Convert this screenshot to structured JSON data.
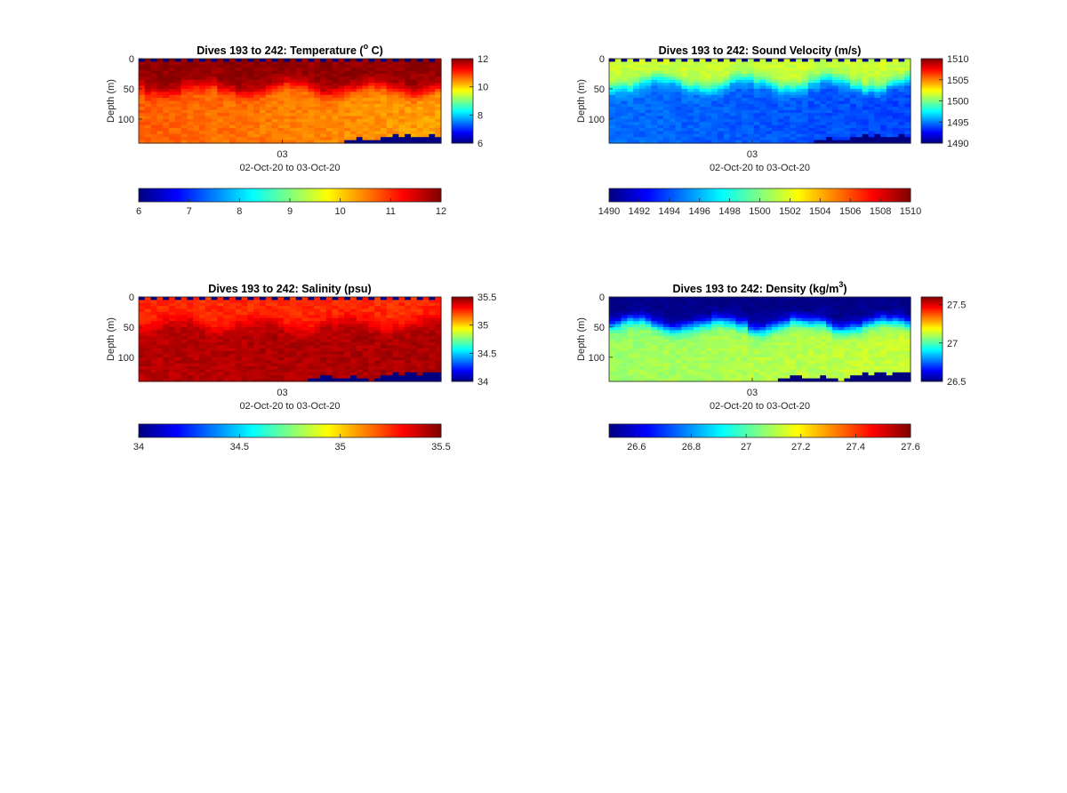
{
  "figure": {
    "background": "#ffffff",
    "colormap": "jet"
  },
  "chart_data": [
    {
      "type": "heatmap",
      "title_prefix": "Dives 193 to 242: Temperature (",
      "title_sup": "o",
      "title_suffix": " C)",
      "xlabel": "02-Oct-20 to 03-Oct-20",
      "ylabel": "Depth (m)",
      "x_ticks": [
        "03"
      ],
      "y_ticks": [
        0,
        50,
        100
      ],
      "ylim": [
        0,
        140
      ],
      "clim": [
        6,
        12
      ],
      "cb_ticks": [
        12,
        10,
        8,
        6
      ],
      "h_cb_ticks": [
        6,
        7,
        8,
        9,
        10,
        11,
        12
      ],
      "n_dives": 50,
      "profile": {
        "upper_value": 11.9,
        "upper_depth_base": 50,
        "lower_value": 10.7,
        "lower_end_value": 10.3,
        "surface_gap": true
      },
      "bottom_depth": [
        140,
        140,
        140,
        140,
        140,
        140,
        140,
        140,
        140,
        140,
        140,
        140,
        140,
        140,
        140,
        140,
        140,
        140,
        140,
        140,
        140,
        140,
        140,
        140,
        140,
        140,
        140,
        140,
        140,
        140,
        140,
        140,
        140,
        140,
        134,
        134,
        132,
        134,
        136,
        134,
        132,
        128,
        126,
        128,
        126,
        128,
        130,
        128,
        126,
        130
      ]
    },
    {
      "type": "heatmap",
      "title_prefix": "Dives 193 to 242: Sound Velocity (m/s)",
      "title_sup": "",
      "title_suffix": "",
      "xlabel": "02-Oct-20 to 03-Oct-20",
      "ylabel": "Depth (m)",
      "x_ticks": [
        "03"
      ],
      "y_ticks": [
        0,
        50,
        100
      ],
      "ylim": [
        0,
        140
      ],
      "clim": [
        1490,
        1510
      ],
      "cb_ticks": [
        1510,
        1505,
        1500,
        1495,
        1490
      ],
      "h_cb_ticks": [
        1490,
        1492,
        1494,
        1496,
        1498,
        1500,
        1502,
        1504,
        1506,
        1508,
        1510
      ],
      "n_dives": 50,
      "profile": {
        "upper_value": 1501.5,
        "upper_depth_base": 42,
        "lower_value": 1494.6,
        "lower_end_value": 1493.8,
        "surface_gap": true
      },
      "bottom_depth": [
        140,
        140,
        140,
        140,
        140,
        140,
        140,
        140,
        140,
        140,
        140,
        140,
        140,
        140,
        140,
        140,
        140,
        140,
        140,
        140,
        140,
        140,
        140,
        140,
        140,
        140,
        140,
        140,
        140,
        140,
        140,
        140,
        140,
        140,
        136,
        134,
        132,
        134,
        136,
        134,
        132,
        128,
        126,
        128,
        126,
        128,
        130,
        128,
        126,
        130
      ]
    },
    {
      "type": "heatmap",
      "title_prefix": "Dives 193 to 242: Salinity (psu)",
      "title_sup": "",
      "title_suffix": "",
      "xlabel": "02-Oct-20 to 03-Oct-20",
      "ylabel": "Depth (m)",
      "x_ticks": [
        "03"
      ],
      "y_ticks": [
        0,
        50,
        100
      ],
      "ylim": [
        0,
        140
      ],
      "clim": [
        34,
        35.5
      ],
      "cb_ticks": [
        35.5,
        35,
        34.5,
        34
      ],
      "h_cb_ticks": [
        34,
        34.5,
        35,
        35.5
      ],
      "n_dives": 50,
      "profile": {
        "upper_value": 35.25,
        "upper_depth_base": 46,
        "lower_value": 35.42,
        "lower_end_value": 35.44,
        "surface_gap": true
      },
      "bottom_depth": [
        140,
        140,
        140,
        140,
        140,
        140,
        140,
        140,
        140,
        140,
        140,
        140,
        140,
        140,
        140,
        140,
        140,
        140,
        140,
        140,
        140,
        140,
        140,
        140,
        140,
        140,
        140,
        140,
        136,
        134,
        132,
        132,
        134,
        136,
        134,
        132,
        134,
        136,
        138,
        134,
        132,
        128,
        126,
        128,
        126,
        126,
        128,
        126,
        124,
        126
      ]
    },
    {
      "type": "heatmap",
      "title_prefix": "Dives 193 to 242: Density (kg/m",
      "title_sup": "3",
      "title_suffix": ")",
      "xlabel": "02-Oct-20 to 03-Oct-20",
      "ylabel": "Depth (m)",
      "x_ticks": [
        "03"
      ],
      "y_ticks": [
        0,
        50,
        100
      ],
      "ylim": [
        0,
        140
      ],
      "clim": [
        26.5,
        27.6
      ],
      "cb_ticks": [
        27.5,
        27,
        26.5
      ],
      "h_cb_ticks": [
        26.6,
        26.8,
        27,
        27.2,
        27.4,
        27.6
      ],
      "n_dives": 50,
      "profile": {
        "upper_value": 26.5,
        "upper_depth_base": 46,
        "lower_value": 27.08,
        "lower_end_value": 27.13,
        "surface_gap": false
      },
      "bottom_depth": [
        140,
        140,
        140,
        140,
        140,
        140,
        140,
        140,
        140,
        140,
        140,
        140,
        140,
        140,
        140,
        140,
        140,
        140,
        140,
        140,
        140,
        140,
        140,
        140,
        140,
        140,
        140,
        140,
        136,
        134,
        132,
        132,
        134,
        136,
        134,
        132,
        134,
        136,
        138,
        134,
        132,
        128,
        126,
        128,
        126,
        126,
        128,
        126,
        124,
        126
      ]
    }
  ]
}
